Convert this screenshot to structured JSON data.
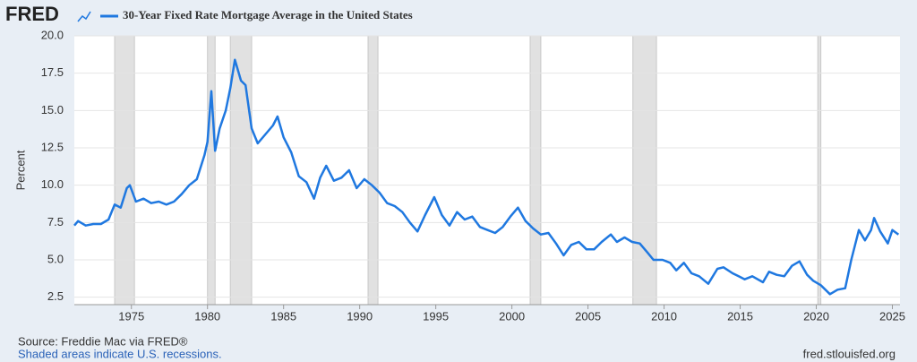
{
  "header": {
    "logo": "FRED"
  },
  "chart_data": {
    "type": "line",
    "x": [
      1971.25,
      1971.5,
      1972,
      1972.5,
      1973,
      1973.5,
      1973.9,
      1974.3,
      1974.7,
      1974.9,
      1975.3,
      1975.8,
      1976.3,
      1976.8,
      1977.3,
      1977.8,
      1978.3,
      1978.8,
      1979.3,
      1979.8,
      1980.0,
      1980.25,
      1980.5,
      1980.8,
      1981.2,
      1981.5,
      1981.8,
      1982.2,
      1982.5,
      1982.9,
      1983.3,
      1983.8,
      1984.3,
      1984.6,
      1985.0,
      1985.5,
      1986.0,
      1986.5,
      1987.0,
      1987.4,
      1987.8,
      1988.3,
      1988.8,
      1989.3,
      1989.8,
      1990.3,
      1990.8,
      1991.3,
      1991.8,
      1992.3,
      1992.8,
      1993.3,
      1993.8,
      1994.3,
      1994.9,
      1995.4,
      1995.9,
      1996.4,
      1996.9,
      1997.4,
      1997.9,
      1998.4,
      1998.9,
      1999.4,
      1999.9,
      2000.4,
      2000.9,
      2001.4,
      2001.9,
      2002.4,
      2002.9,
      2003.4,
      2003.9,
      2004.4,
      2004.9,
      2005.4,
      2005.9,
      2006.5,
      2006.9,
      2007.4,
      2007.9,
      2008.4,
      2008.9,
      2009.3,
      2009.9,
      2010.4,
      2010.8,
      2011.3,
      2011.8,
      2012.3,
      2012.9,
      2013.5,
      2013.9,
      2014.5,
      2014.9,
      2015.3,
      2015.8,
      2016.5,
      2016.9,
      2017.4,
      2017.9,
      2018.4,
      2018.9,
      2019.4,
      2019.8,
      2020.3,
      2020.9,
      2021.4,
      2021.9,
      2022.3,
      2022.8,
      2023.2,
      2023.6,
      2023.8,
      2024.2,
      2024.7,
      2025.0,
      2025.4
    ],
    "series": [
      {
        "name": "30-Year Fixed Rate Mortgage Average in the United States",
        "color": "#1f78e0",
        "values": [
          7.3,
          7.6,
          7.3,
          7.4,
          7.4,
          7.7,
          8.7,
          8.5,
          9.8,
          10.0,
          8.9,
          9.1,
          8.8,
          8.9,
          8.7,
          8.9,
          9.4,
          10.0,
          10.4,
          12.0,
          12.9,
          16.3,
          12.3,
          13.8,
          15.0,
          16.5,
          18.4,
          17.0,
          16.7,
          13.8,
          12.8,
          13.4,
          14.0,
          14.6,
          13.2,
          12.2,
          10.6,
          10.2,
          9.1,
          10.5,
          11.3,
          10.3,
          10.5,
          11.0,
          9.8,
          10.4,
          10.0,
          9.5,
          8.8,
          8.6,
          8.2,
          7.5,
          6.9,
          8.0,
          9.2,
          8.0,
          7.3,
          8.2,
          7.7,
          7.9,
          7.2,
          7.0,
          6.8,
          7.2,
          7.9,
          8.5,
          7.6,
          7.1,
          6.7,
          6.8,
          6.1,
          5.3,
          6.0,
          6.2,
          5.7,
          5.7,
          6.2,
          6.7,
          6.2,
          6.5,
          6.2,
          6.1,
          5.5,
          5.0,
          5.0,
          4.8,
          4.3,
          4.8,
          4.1,
          3.9,
          3.4,
          4.4,
          4.5,
          4.1,
          3.9,
          3.7,
          3.9,
          3.5,
          4.2,
          4.0,
          3.9,
          4.6,
          4.9,
          4.0,
          3.6,
          3.3,
          2.7,
          3.0,
          3.1,
          5.0,
          7.0,
          6.3,
          7.0,
          7.8,
          6.9,
          6.1,
          7.0,
          6.7
        ]
      }
    ],
    "recessions": [
      [
        1973.9,
        1975.2
      ],
      [
        1980.0,
        1980.5
      ],
      [
        1981.5,
        1982.9
      ],
      [
        1990.55,
        1991.2
      ],
      [
        2001.2,
        2001.9
      ],
      [
        2007.95,
        2009.5
      ],
      [
        2020.1,
        2020.3
      ]
    ],
    "recession_color": "#e1e1e1",
    "ylabel": "Percent",
    "xlim": [
      1971.25,
      2025.5
    ],
    "xticks": [
      1975,
      1980,
      1985,
      1990,
      1995,
      2000,
      2005,
      2010,
      2015,
      2020,
      2025
    ],
    "ylim": [
      2.0,
      20.0
    ],
    "yticks": [
      2.5,
      {
        "value": 5,
        "label": "5.0"
      },
      7.5,
      {
        "value": 10,
        "label": "10.0"
      },
      12.5,
      {
        "value": 15,
        "label": "15.0"
      },
      17.5,
      {
        "value": 20,
        "label": "20.0"
      }
    ],
    "grid": true
  },
  "footer": {
    "source": "Source: Freddie Mac via FRED®",
    "note": "Shaded areas indicate U.S. recessions.",
    "site": "fred.stlouisfed.org"
  }
}
